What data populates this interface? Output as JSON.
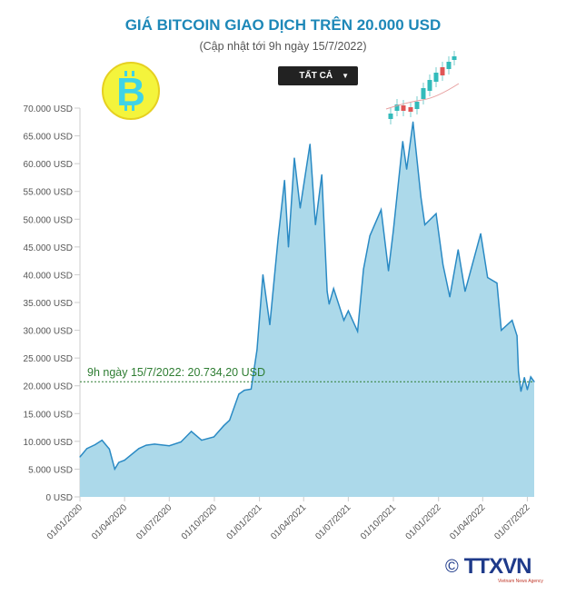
{
  "header": {
    "title": "GIÁ BITCOIN GIAO DỊCH TRÊN 20.000 USD",
    "subtitle": "(Cập nhật tới 9h ngày 15/7/2022)",
    "range_select": "TẤT CẢ"
  },
  "logo": {
    "text": "TTXVN",
    "tagline": "Vietnam News Agency",
    "copyright": "©"
  },
  "chart_data": {
    "type": "area",
    "title": "GIÁ BITCOIN GIAO DỊCH TRÊN 20.000 USD",
    "subtitle": "(Cập nhật tới 9h ngày 15/7/2022)",
    "ylim": [
      0,
      70000
    ],
    "xlim": [
      "2020-01-01",
      "2022-07-15"
    ],
    "grid": false,
    "colors": {
      "fill": "#acd9ea",
      "line": "#2a8ac4",
      "reference": "#2e7d32"
    },
    "y_ticks": [
      "0 USD",
      "5.000 USD",
      "10.000 USD",
      "15.000 USD",
      "20.000 USD",
      "25.000 USD",
      "30.000 USD",
      "35.000 USD",
      "40.000 USD",
      "45.000 USD",
      "50.000 USD",
      "55.000 USD",
      "60.000 USD",
      "65.000 USD",
      "70.000 USD"
    ],
    "x_ticks": [
      "01/01/2020",
      "01/04/2020",
      "01/07/2020",
      "01/10/2020",
      "01/01/2021",
      "01/04/2021",
      "01/07/2021",
      "01/10/2021",
      "01/01/2022",
      "01/04/2022",
      "01/07/2022"
    ],
    "reference_line": {
      "value": 20734.2,
      "label": "9h ngày 15/7/2022: 20.734,20 USD"
    },
    "points": [
      [
        "2020-01-01",
        7200
      ],
      [
        "2020-01-15",
        8700
      ],
      [
        "2020-02-01",
        9400
      ],
      [
        "2020-02-15",
        10200
      ],
      [
        "2020-03-01",
        8600
      ],
      [
        "2020-03-12",
        5000
      ],
      [
        "2020-03-20",
        6200
      ],
      [
        "2020-04-01",
        6600
      ],
      [
        "2020-04-30",
        8700
      ],
      [
        "2020-05-15",
        9300
      ],
      [
        "2020-06-01",
        9500
      ],
      [
        "2020-07-01",
        9200
      ],
      [
        "2020-07-25",
        9900
      ],
      [
        "2020-08-15",
        11800
      ],
      [
        "2020-09-05",
        10200
      ],
      [
        "2020-09-30",
        10800
      ],
      [
        "2020-10-20",
        12800
      ],
      [
        "2020-11-01",
        13800
      ],
      [
        "2020-11-20",
        18500
      ],
      [
        "2020-12-01",
        19200
      ],
      [
        "2020-12-15",
        19400
      ],
      [
        "2020-12-27",
        26500
      ],
      [
        "2021-01-08",
        40000
      ],
      [
        "2021-01-22",
        31000
      ],
      [
        "2021-02-08",
        46500
      ],
      [
        "2021-02-21",
        57000
      ],
      [
        "2021-03-01",
        45000
      ],
      [
        "2021-03-13",
        61000
      ],
      [
        "2021-03-25",
        52000
      ],
      [
        "2021-04-14",
        63500
      ],
      [
        "2021-04-25",
        49000
      ],
      [
        "2021-05-08",
        58000
      ],
      [
        "2021-05-19",
        37000
      ],
      [
        "2021-05-23",
        34700
      ],
      [
        "2021-06-01",
        37500
      ],
      [
        "2021-06-22",
        31800
      ],
      [
        "2021-07-01",
        33500
      ],
      [
        "2021-07-20",
        29800
      ],
      [
        "2021-08-01",
        41000
      ],
      [
        "2021-08-14",
        47000
      ],
      [
        "2021-09-06",
        51700
      ],
      [
        "2021-09-21",
        40700
      ],
      [
        "2021-10-01",
        48000
      ],
      [
        "2021-10-20",
        64000
      ],
      [
        "2021-10-28",
        59000
      ],
      [
        "2021-11-10",
        67500
      ],
      [
        "2021-11-26",
        54000
      ],
      [
        "2021-12-04",
        49000
      ],
      [
        "2021-12-27",
        51000
      ],
      [
        "2022-01-10",
        41800
      ],
      [
        "2022-01-24",
        36000
      ],
      [
        "2022-02-10",
        44500
      ],
      [
        "2022-02-24",
        37000
      ],
      [
        "2022-03-28",
        47400
      ],
      [
        "2022-04-11",
        39500
      ],
      [
        "2022-04-30",
        38500
      ],
      [
        "2022-05-09",
        30000
      ],
      [
        "2022-05-31",
        31800
      ],
      [
        "2022-06-10",
        29000
      ],
      [
        "2022-06-13",
        22500
      ],
      [
        "2022-06-18",
        19000
      ],
      [
        "2022-06-25",
        21500
      ],
      [
        "2022-07-01",
        19300
      ],
      [
        "2022-07-08",
        21600
      ],
      [
        "2022-07-15",
        20734.2
      ]
    ]
  }
}
